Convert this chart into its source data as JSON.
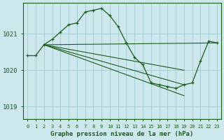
{
  "title": "Graphe pression niveau de la mer (hPa)",
  "background_color": "#cce8ed",
  "grid_color": "#a8ced6",
  "line_color": "#1a5c1a",
  "yticks": [
    1019,
    1020,
    1021
  ],
  "ylim": [
    1018.65,
    1021.85
  ],
  "xlim": [
    -0.5,
    23.5
  ],
  "xticks": [
    0,
    1,
    2,
    3,
    4,
    5,
    6,
    7,
    8,
    9,
    10,
    11,
    12,
    13,
    14,
    15,
    16,
    17,
    18,
    19,
    20,
    21,
    22,
    23
  ],
  "main_x": [
    0,
    1,
    2,
    3,
    4,
    5,
    6,
    7,
    8,
    9,
    10,
    11,
    12,
    13,
    14,
    15,
    16,
    17,
    18,
    19,
    20,
    21,
    22,
    23
  ],
  "main_y": [
    1020.4,
    1020.4,
    1020.7,
    1020.85,
    1021.05,
    1021.25,
    1021.3,
    1021.6,
    1021.65,
    1021.7,
    1021.5,
    1021.2,
    1020.75,
    1020.35,
    1020.15,
    1019.65,
    1019.6,
    1019.55,
    1019.5,
    1019.6,
    1019.65,
    1020.25,
    1020.8,
    1020.75
  ],
  "line1_x": [
    2,
    19
  ],
  "line1_y": [
    1020.7,
    1020.65
  ],
  "line2_x": [
    2,
    19
  ],
  "line2_y": [
    1020.7,
    1019.95
  ],
  "line3_x": [
    2,
    19
  ],
  "line3_y": [
    1020.7,
    1019.55
  ],
  "line4_x": [
    2,
    19
  ],
  "line4_y": [
    1020.7,
    1019.35
  ]
}
